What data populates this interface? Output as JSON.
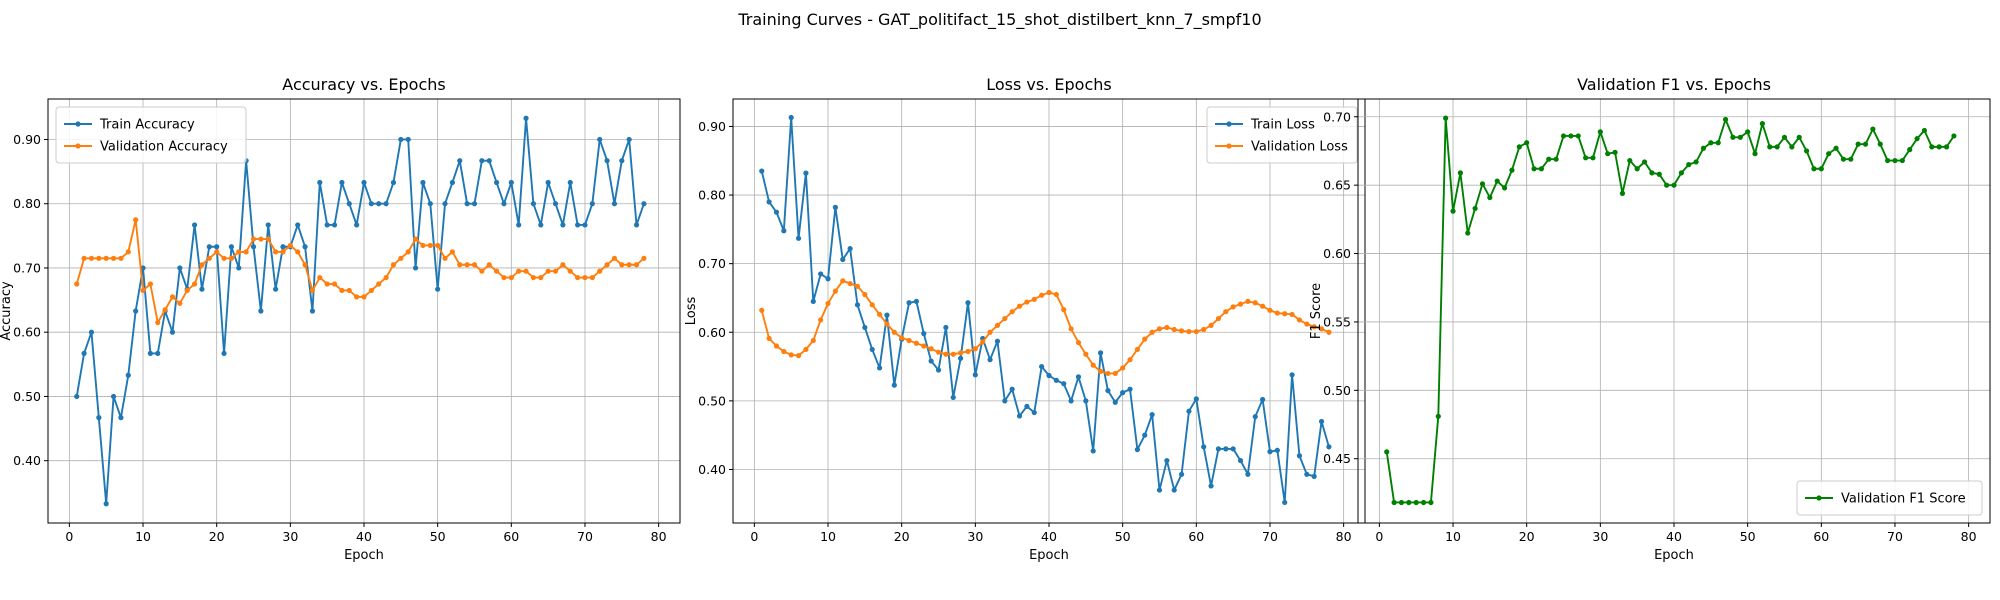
{
  "figure": {
    "suptitle": "Training Curves - GAT_politifact_15_shot_distilbert_knn_7_smpf10"
  },
  "colors": {
    "blue": "#1f77b4",
    "orange": "#ff7f0e",
    "green": "#008000",
    "grid": "#b0b0b0"
  },
  "chart_data": [
    {
      "type": "line",
      "title": "Accuracy vs. Epochs",
      "xlabel": "Epoch",
      "ylabel": "Accuracy",
      "xlim": [
        -2.9,
        82.9
      ],
      "ylim": [
        0.303,
        0.963
      ],
      "xticks": [
        0,
        10,
        20,
        30,
        40,
        50,
        60,
        70,
        80
      ],
      "yticks": [
        0.4,
        0.5,
        0.6,
        0.7,
        0.8,
        0.9
      ],
      "grid": true,
      "legend": "upper-left",
      "series": [
        {
          "name": "Train Accuracy",
          "color": "#1f77b4",
          "x": [
            1,
            2,
            3,
            4,
            5,
            6,
            7,
            8,
            9,
            10,
            11,
            12,
            13,
            14,
            15,
            16,
            17,
            18,
            19,
            20,
            21,
            22,
            23,
            24,
            25,
            26,
            27,
            28,
            29,
            30,
            31,
            32,
            33,
            34,
            35,
            36,
            37,
            38,
            39,
            40,
            41,
            42,
            43,
            44,
            45,
            46,
            47,
            48,
            49,
            50,
            51,
            52,
            53,
            54,
            55,
            56,
            57,
            58,
            59,
            60,
            61,
            62,
            63,
            64,
            65,
            66,
            67,
            68,
            69,
            70,
            71,
            72,
            73,
            74,
            75,
            76,
            77,
            78
          ],
          "y": [
            0.5,
            0.567,
            0.6,
            0.467,
            0.333,
            0.5,
            0.467,
            0.533,
            0.633,
            0.7,
            0.567,
            0.567,
            0.633,
            0.6,
            0.7,
            0.667,
            0.767,
            0.667,
            0.733,
            0.733,
            0.567,
            0.733,
            0.7,
            0.867,
            0.733,
            0.633,
            0.767,
            0.667,
            0.733,
            0.733,
            0.767,
            0.733,
            0.633,
            0.833,
            0.767,
            0.767,
            0.833,
            0.8,
            0.767,
            0.833,
            0.8,
            0.8,
            0.8,
            0.833,
            0.9,
            0.9,
            0.7,
            0.833,
            0.8,
            0.667,
            0.8,
            0.833,
            0.867,
            0.8,
            0.8,
            0.867,
            0.867,
            0.833,
            0.8,
            0.833,
            0.767,
            0.933,
            0.8,
            0.767,
            0.833,
            0.8,
            0.767,
            0.833,
            0.767,
            0.767,
            0.8,
            0.9,
            0.867,
            0.8,
            0.867,
            0.9,
            0.767,
            0.8
          ]
        },
        {
          "name": "Validation Accuracy",
          "color": "#ff7f0e",
          "x": [
            1,
            2,
            3,
            4,
            5,
            6,
            7,
            8,
            9,
            10,
            11,
            12,
            13,
            14,
            15,
            16,
            17,
            18,
            19,
            20,
            21,
            22,
            23,
            24,
            25,
            26,
            27,
            28,
            29,
            30,
            31,
            32,
            33,
            34,
            35,
            36,
            37,
            38,
            39,
            40,
            41,
            42,
            43,
            44,
            45,
            46,
            47,
            48,
            49,
            50,
            51,
            52,
            53,
            54,
            55,
            56,
            57,
            58,
            59,
            60,
            61,
            62,
            63,
            64,
            65,
            66,
            67,
            68,
            69,
            70,
            71,
            72,
            73,
            74,
            75,
            76,
            77,
            78
          ],
          "y": [
            0.675,
            0.715,
            0.715,
            0.715,
            0.715,
            0.715,
            0.715,
            0.725,
            0.775,
            0.665,
            0.675,
            0.615,
            0.635,
            0.655,
            0.645,
            0.665,
            0.675,
            0.705,
            0.715,
            0.725,
            0.715,
            0.715,
            0.725,
            0.725,
            0.745,
            0.745,
            0.745,
            0.725,
            0.725,
            0.735,
            0.725,
            0.705,
            0.665,
            0.685,
            0.675,
            0.675,
            0.665,
            0.665,
            0.655,
            0.655,
            0.665,
            0.675,
            0.685,
            0.705,
            0.715,
            0.725,
            0.745,
            0.735,
            0.735,
            0.735,
            0.715,
            0.725,
            0.705,
            0.705,
            0.705,
            0.695,
            0.705,
            0.695,
            0.685,
            0.685,
            0.695,
            0.695,
            0.685,
            0.685,
            0.695,
            0.695,
            0.705,
            0.695,
            0.685,
            0.685,
            0.685,
            0.695,
            0.705,
            0.715,
            0.705,
            0.705,
            0.705,
            0.715
          ]
        }
      ]
    },
    {
      "type": "line",
      "title": "Loss vs. Epochs",
      "xlabel": "Epoch",
      "ylabel": "Loss",
      "xlim": [
        -2.9,
        82.9
      ],
      "ylim": [
        0.322,
        0.94
      ],
      "xticks": [
        0,
        10,
        20,
        30,
        40,
        50,
        60,
        70,
        80
      ],
      "yticks": [
        0.4,
        0.5,
        0.6,
        0.7,
        0.8,
        0.9
      ],
      "grid": true,
      "legend": "upper-right",
      "series": [
        {
          "name": "Train Loss",
          "color": "#1f77b4",
          "x": [
            1,
            2,
            3,
            4,
            5,
            6,
            7,
            8,
            9,
            10,
            11,
            12,
            13,
            14,
            15,
            16,
            17,
            18,
            19,
            20,
            21,
            22,
            23,
            24,
            25,
            26,
            27,
            28,
            29,
            30,
            31,
            32,
            33,
            34,
            35,
            36,
            37,
            38,
            39,
            40,
            41,
            42,
            43,
            44,
            45,
            46,
            47,
            48,
            49,
            50,
            51,
            52,
            53,
            54,
            55,
            56,
            57,
            58,
            59,
            60,
            61,
            62,
            63,
            64,
            65,
            66,
            67,
            68,
            69,
            70,
            71,
            72,
            73,
            74,
            75,
            76,
            77,
            78
          ],
          "y": [
            0.835,
            0.79,
            0.775,
            0.748,
            0.913,
            0.737,
            0.832,
            0.645,
            0.685,
            0.678,
            0.782,
            0.706,
            0.722,
            0.64,
            0.607,
            0.575,
            0.548,
            0.625,
            0.523,
            0.59,
            0.643,
            0.645,
            0.598,
            0.558,
            0.545,
            0.607,
            0.505,
            0.562,
            0.643,
            0.538,
            0.591,
            0.56,
            0.587,
            0.5,
            0.517,
            0.478,
            0.492,
            0.483,
            0.55,
            0.537,
            0.53,
            0.525,
            0.5,
            0.535,
            0.5,
            0.427,
            0.57,
            0.515,
            0.498,
            0.512,
            0.517,
            0.429,
            0.45,
            0.48,
            0.37,
            0.413,
            0.37,
            0.393,
            0.485,
            0.503,
            0.433,
            0.376,
            0.43,
            0.43,
            0.43,
            0.413,
            0.393,
            0.477,
            0.502,
            0.426,
            0.428,
            0.352,
            0.538,
            0.42,
            0.393,
            0.39,
            0.47,
            0.433
          ]
        },
        {
          "name": "Validation Loss",
          "color": "#ff7f0e",
          "x": [
            1,
            2,
            3,
            4,
            5,
            6,
            7,
            8,
            9,
            10,
            11,
            12,
            13,
            14,
            15,
            16,
            17,
            18,
            19,
            20,
            21,
            22,
            23,
            24,
            25,
            26,
            27,
            28,
            29,
            30,
            31,
            32,
            33,
            34,
            35,
            36,
            37,
            38,
            39,
            40,
            41,
            42,
            43,
            44,
            45,
            46,
            47,
            48,
            49,
            50,
            51,
            52,
            53,
            54,
            55,
            56,
            57,
            58,
            59,
            60,
            61,
            62,
            63,
            64,
            65,
            66,
            67,
            68,
            69,
            70,
            71,
            72,
            73,
            74,
            75,
            76,
            77,
            78
          ],
          "y": [
            0.632,
            0.591,
            0.58,
            0.572,
            0.567,
            0.566,
            0.575,
            0.588,
            0.618,
            0.642,
            0.66,
            0.675,
            0.671,
            0.667,
            0.655,
            0.64,
            0.626,
            0.612,
            0.6,
            0.592,
            0.588,
            0.584,
            0.58,
            0.576,
            0.571,
            0.568,
            0.568,
            0.57,
            0.572,
            0.576,
            0.586,
            0.6,
            0.61,
            0.62,
            0.63,
            0.638,
            0.644,
            0.648,
            0.654,
            0.658,
            0.655,
            0.633,
            0.605,
            0.585,
            0.568,
            0.552,
            0.543,
            0.54,
            0.54,
            0.548,
            0.56,
            0.575,
            0.59,
            0.6,
            0.605,
            0.607,
            0.604,
            0.602,
            0.601,
            0.601,
            0.604,
            0.61,
            0.62,
            0.63,
            0.637,
            0.641,
            0.645,
            0.643,
            0.638,
            0.632,
            0.628,
            0.627,
            0.626,
            0.618,
            0.612,
            0.608,
            0.605,
            0.6
          ]
        }
      ]
    },
    {
      "type": "line",
      "title": "Validation F1 vs. Epochs",
      "xlabel": "Epoch",
      "ylabel": "F1 Score",
      "xlim": [
        -2.9,
        82.9
      ],
      "ylim": [
        0.403,
        0.713
      ],
      "xticks": [
        0,
        10,
        20,
        30,
        40,
        50,
        60,
        70,
        80
      ],
      "yticks": [
        0.45,
        0.5,
        0.55,
        0.6,
        0.65,
        0.7
      ],
      "grid": true,
      "legend": "lower-right",
      "series": [
        {
          "name": "Validation F1 Score",
          "color": "#008000",
          "x": [
            1,
            2,
            3,
            4,
            5,
            6,
            7,
            8,
            9,
            10,
            11,
            12,
            13,
            14,
            15,
            16,
            17,
            18,
            19,
            20,
            21,
            22,
            23,
            24,
            25,
            26,
            27,
            28,
            29,
            30,
            31,
            32,
            33,
            34,
            35,
            36,
            37,
            38,
            39,
            40,
            41,
            42,
            43,
            44,
            45,
            46,
            47,
            48,
            49,
            50,
            51,
            52,
            53,
            54,
            55,
            56,
            57,
            58,
            59,
            60,
            61,
            62,
            63,
            64,
            65,
            66,
            67,
            68,
            69,
            70,
            71,
            72,
            73,
            74,
            75,
            76,
            77,
            78
          ],
          "y": [
            0.455,
            0.418,
            0.418,
            0.418,
            0.418,
            0.418,
            0.418,
            0.481,
            0.699,
            0.631,
            0.659,
            0.615,
            0.633,
            0.651,
            0.641,
            0.653,
            0.648,
            0.661,
            0.678,
            0.681,
            0.662,
            0.662,
            0.669,
            0.669,
            0.686,
            0.686,
            0.686,
            0.67,
            0.67,
            0.689,
            0.673,
            0.674,
            0.644,
            0.668,
            0.662,
            0.667,
            0.659,
            0.658,
            0.65,
            0.65,
            0.659,
            0.665,
            0.667,
            0.677,
            0.681,
            0.681,
            0.698,
            0.685,
            0.685,
            0.689,
            0.673,
            0.695,
            0.678,
            0.678,
            0.685,
            0.678,
            0.685,
            0.675,
            0.662,
            0.662,
            0.673,
            0.677,
            0.669,
            0.669,
            0.68,
            0.68,
            0.691,
            0.68,
            0.668,
            0.668,
            0.668,
            0.676,
            0.684,
            0.69,
            0.678,
            0.678,
            0.678,
            0.686
          ]
        }
      ]
    }
  ]
}
